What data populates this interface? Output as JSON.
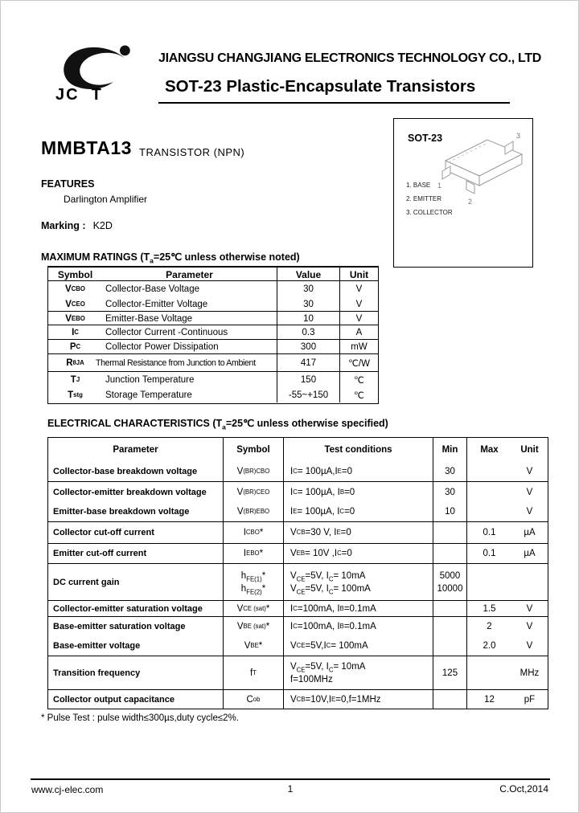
{
  "header": {
    "logo_text": "JC  T",
    "company": "JIANGSU CHANGJIANG ELECTRONICS TECHNOLOGY CO., LTD",
    "title": "SOT-23 Plastic-Encapsulate Transistors"
  },
  "package_box": {
    "title": "SOT-23",
    "pins": [
      "1. BASE",
      "2. EMITTER",
      "3. COLLECTOR"
    ],
    "lead_labels": [
      "1",
      "2",
      "3"
    ]
  },
  "part": {
    "number": "MMBTA13",
    "type": "TRANSISTOR (NPN)"
  },
  "features": {
    "heading": "FEATURES",
    "items": [
      "Darlington Amplifier"
    ]
  },
  "marking": {
    "label": "Marking :",
    "value": "K2D"
  },
  "max_ratings": {
    "heading": "MAXIMUM RATINGS (T~a~=25℃ unless otherwise noted)",
    "columns": [
      "Symbol",
      "Parameter",
      "Value",
      "Unit"
    ],
    "rows": [
      {
        "symbol": "V~CBO~",
        "parameter": "Collector-Base Voltage",
        "value": "30",
        "unit": "V"
      },
      {
        "symbol": "V~CEO~",
        "parameter": "Collector-Emitter Voltage",
        "value": "30",
        "unit": "V"
      },
      {
        "symbol": "V~EBO~",
        "parameter": "Emitter-Base Voltage",
        "value": "10",
        "unit": "V"
      },
      {
        "symbol": "I~C~",
        "parameter": "Collector Current -Continuous",
        "value": "0.3",
        "unit": "A"
      },
      {
        "symbol": "P~C~",
        "parameter": "Collector Power Dissipation",
        "value": "300",
        "unit": "mW"
      },
      {
        "symbol": "R~θJA~",
        "parameter": "Thermal Resistance from Junction to Ambient",
        "value": "417",
        "unit": "℃/W"
      },
      {
        "symbol": "T~J~",
        "parameter": "Junction Temperature",
        "value": "150",
        "unit": "℃"
      },
      {
        "symbol": "T~stg~",
        "parameter": "Storage Temperature",
        "value": "-55~+150",
        "unit": "℃"
      }
    ]
  },
  "electrical": {
    "heading": "ELECTRICAL CHARACTERISTICS (T~a~=25℃ unless otherwise specified)",
    "columns": [
      "Parameter",
      "Symbol",
      "Test conditions",
      "Min",
      "Max",
      "Unit"
    ],
    "rows": [
      {
        "parameter": "Collector-base breakdown voltage",
        "symbol": "V~(BR)CBO~",
        "conditions": "I~C~= 100µA,I~E~=0",
        "min": "30",
        "max": "",
        "unit": "V"
      },
      {
        "parameter": "Collector-emitter breakdown voltage",
        "symbol": "V~(BR)CEO~",
        "conditions": "I~C~= 100µA, I~B~=0",
        "min": "30",
        "max": "",
        "unit": "V"
      },
      {
        "parameter": "Emitter-base  breakdown voltage",
        "symbol": "V~(BR)EBO~",
        "conditions": "I~E~= 100µA, I~C~=0",
        "min": "10",
        "max": "",
        "unit": "V"
      },
      {
        "parameter": "Collector cut-off current",
        "symbol": "I~CBO~*",
        "conditions": "V~CB~=30 V, I~E~=0",
        "min": "",
        "max": "0.1",
        "unit": "µA"
      },
      {
        "parameter": "Emitter cut-off current",
        "symbol": "I~EBO~*",
        "conditions": "V~EB~= 10V ,I~C~=0",
        "min": "",
        "max": "0.1",
        "unit": "µA"
      },
      {
        "parameter": "DC current gain",
        "symbol": "h~FE(1)~*",
        "symbol2": "h~FE(2)~*",
        "conditions": "V~CE~=5V, I~C~= 10mA",
        "conditions2": "V~CE~=5V, I~C~= 100mA",
        "min": "5000",
        "min2": "10000",
        "max": "",
        "unit": ""
      },
      {
        "parameter": "Collector-emitter saturation voltage",
        "symbol": "V~CE (sat)~*",
        "conditions": "I~C~=100mA, I~B~=0.1mA",
        "min": "",
        "max": "1.5",
        "unit": "V"
      },
      {
        "parameter": "Base-emitter saturation voltage",
        "symbol": "V~BE (sat)~*",
        "conditions": "I~C~=100mA, I~B~=0.1mA",
        "min": "",
        "max": "2",
        "unit": "V"
      },
      {
        "parameter": "Base-emitter voltage",
        "symbol": "V~BE~*",
        "conditions": "V~CE~=5V,I~C~= 100mA",
        "min": "",
        "max": "2.0",
        "unit": "V"
      },
      {
        "parameter": "Transition frequency",
        "symbol": "f~T~",
        "conditions": "V~CE~=5V,  I~C~= 10mA",
        "conditions2": "f=100MHz",
        "min": "125",
        "max": "",
        "unit": "MHz"
      },
      {
        "parameter": "Collector output capacitance",
        "symbol": "C~ob~",
        "conditions": "V~CB~=10V,I~E~=0,f=1MHz",
        "min": "",
        "max": "12",
        "unit": "pF"
      }
    ]
  },
  "note": "* Pulse Test : pulse width≤300µs,duty cycle≤2%.",
  "footer": {
    "website": "www.cj-elec.com",
    "page": "1",
    "date": "C.Oct,2014"
  }
}
